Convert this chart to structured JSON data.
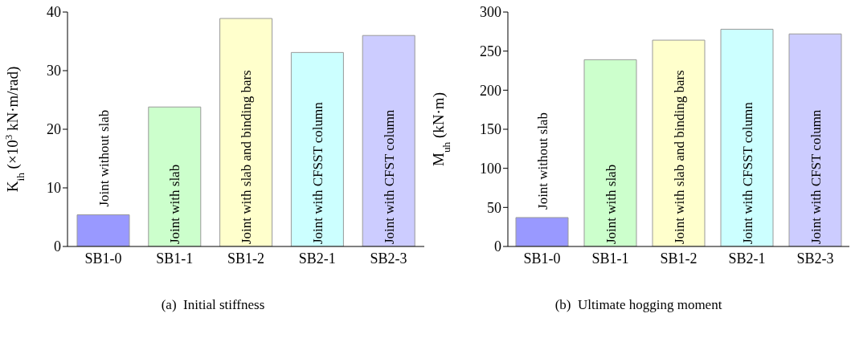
{
  "chart_data": [
    {
      "type": "bar",
      "title": "(a)  Initial stiffness",
      "ylabel": "K$_{ih}$ (×10$^{3}$ kN·m/rad)",
      "categories": [
        "SB1-0",
        "SB1-1",
        "SB1-2",
        "SB2-1",
        "SB2-3"
      ],
      "values": [
        5.4,
        23.8,
        38.9,
        33.1,
        36.0
      ],
      "colors": [
        "#9999ff",
        "#ccffcc",
        "#ffffcc",
        "#ccffff",
        "#ccccff"
      ],
      "ylim": [
        0,
        40
      ],
      "yticks": [
        0,
        10,
        20,
        30,
        40
      ],
      "grid": false,
      "legend": false,
      "annotations": [
        "Joint without slab",
        "Joint with slab",
        "Joint with slab and binding bars",
        "Joint with CFSST column",
        "Joint with CFST column"
      ]
    },
    {
      "type": "bar",
      "title": "(b)  Ultimate hogging moment",
      "ylabel": "M$_{uh}$ (kN·m)",
      "categories": [
        "SB1-0",
        "SB1-1",
        "SB1-2",
        "SB2-1",
        "SB2-3"
      ],
      "values": [
        37,
        239,
        264,
        278,
        272
      ],
      "colors": [
        "#9999ff",
        "#ccffcc",
        "#ffffcc",
        "#ccffff",
        "#ccccff"
      ],
      "ylim": [
        0,
        300
      ],
      "yticks": [
        0,
        50,
        100,
        150,
        200,
        250,
        300
      ],
      "grid": false,
      "legend": false,
      "annotations": [
        "Joint without slab",
        "Joint with slab",
        "Joint with slab and binding bars",
        "Joint with CFSST column",
        "Joint with CFST column"
      ]
    }
  ]
}
